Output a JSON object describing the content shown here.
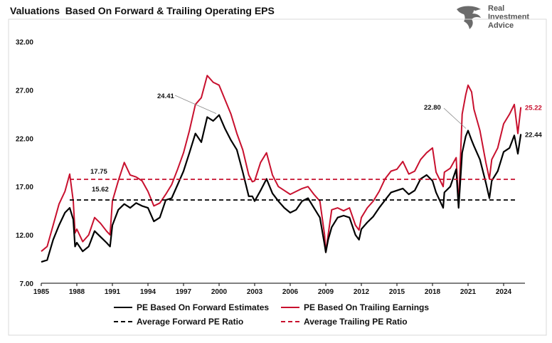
{
  "title": "Valuations  Based On Forward & Trailing Operating EPS",
  "logo": {
    "line1": "Real",
    "line2": "Investment",
    "line3": "Advice"
  },
  "legend": {
    "forward": "PE Based On Forward Estimates",
    "trailing": "PE Based On Trailing Earnings",
    "avg_forward": "Average Forward PE Ratio",
    "avg_trailing": "Average Trailing PE Ratio"
  },
  "colors": {
    "forward": "#000000",
    "trailing": "#c8102e",
    "avg_forward": "#000000",
    "avg_trailing": "#c8102e"
  },
  "chart_data": {
    "type": "line",
    "title": "Valuations  Based On Forward & Trailing Operating EPS",
    "xlabel": "",
    "ylabel": "",
    "xlim": [
      1985,
      2025.8
    ],
    "ylim": [
      7.0,
      33.0
    ],
    "y_ticks": [
      "7.00",
      "12.00",
      "17.00",
      "22.00",
      "27.00",
      "32.00"
    ],
    "x_ticks": [
      "1985",
      "1988",
      "1991",
      "1994",
      "1997",
      "2000",
      "2003",
      "2006",
      "2009",
      "2012",
      "2015",
      "2018",
      "2021",
      "2024"
    ],
    "grid": false,
    "legend_position": "bottom",
    "series": [
      {
        "name": "PE Based On Forward Estimates",
        "style": "solid",
        "x": [
          1985.0,
          1985.5,
          1986.0,
          1986.5,
          1987.0,
          1987.4,
          1987.7,
          1987.85,
          1988.0,
          1988.5,
          1989.0,
          1989.5,
          1990.0,
          1990.5,
          1990.8,
          1991.0,
          1991.5,
          1992.0,
          1992.5,
          1993.0,
          1993.5,
          1994.0,
          1994.5,
          1995.0,
          1995.5,
          1996.0,
          1996.5,
          1997.0,
          1997.5,
          1998.0,
          1998.5,
          1999.0,
          1999.5,
          2000.0,
          2000.5,
          2001.0,
          2001.5,
          2002.0,
          2002.5,
          2002.8,
          2003.0,
          2003.5,
          2004.0,
          2004.5,
          2005.0,
          2005.5,
          2006.0,
          2006.5,
          2007.0,
          2007.5,
          2008.0,
          2008.5,
          2008.9,
          2009.0,
          2009.2,
          2009.5,
          2010.0,
          2010.5,
          2011.0,
          2011.5,
          2011.8,
          2012.0,
          2012.5,
          2013.0,
          2013.5,
          2014.0,
          2014.5,
          2015.0,
          2015.5,
          2016.0,
          2016.5,
          2017.0,
          2017.5,
          2018.0,
          2018.3,
          2018.9,
          2019.0,
          2019.5,
          2020.0,
          2020.2,
          2020.5,
          2020.8,
          2021.0,
          2021.3,
          2021.5,
          2022.0,
          2022.5,
          2022.8,
          2023.0,
          2023.5,
          2024.0,
          2024.5,
          2024.9,
          2025.2,
          2025.45
        ],
        "y": [
          9.2,
          9.4,
          11.5,
          13.0,
          14.3,
          14.8,
          13.6,
          10.8,
          11.2,
          10.3,
          10.8,
          12.4,
          11.8,
          11.2,
          10.8,
          13.0,
          14.6,
          15.2,
          14.8,
          15.3,
          15.0,
          14.8,
          13.4,
          13.8,
          15.6,
          15.8,
          17.2,
          18.6,
          20.5,
          22.5,
          21.6,
          24.2,
          23.8,
          24.41,
          23.0,
          21.8,
          20.8,
          18.5,
          16.0,
          16.0,
          15.5,
          16.6,
          17.8,
          16.3,
          15.5,
          14.8,
          14.3,
          14.6,
          15.5,
          15.8,
          14.8,
          13.8,
          11.0,
          10.2,
          11.5,
          12.8,
          13.8,
          14.0,
          13.8,
          12.0,
          11.5,
          12.6,
          13.3,
          13.9,
          14.8,
          15.6,
          16.4,
          16.6,
          16.8,
          16.2,
          16.6,
          17.8,
          18.2,
          17.6,
          16.4,
          14.8,
          16.4,
          17.0,
          18.8,
          14.8,
          20.5,
          22.2,
          22.8,
          21.8,
          21.2,
          19.8,
          17.4,
          15.8,
          17.6,
          18.6,
          20.6,
          21.0,
          22.3,
          20.4,
          22.44
        ]
      },
      {
        "name": "PE Based On Trailing Earnings",
        "style": "solid",
        "x": [
          1985.0,
          1985.5,
          1986.0,
          1986.5,
          1987.0,
          1987.4,
          1987.7,
          1987.85,
          1988.0,
          1988.5,
          1989.0,
          1989.5,
          1990.0,
          1990.5,
          1990.8,
          1991.0,
          1991.5,
          1992.0,
          1992.5,
          1993.0,
          1993.5,
          1994.0,
          1994.5,
          1995.0,
          1995.5,
          1996.0,
          1996.5,
          1997.0,
          1997.5,
          1998.0,
          1998.5,
          1999.0,
          1999.5,
          2000.0,
          2000.5,
          2001.0,
          2001.5,
          2002.0,
          2002.5,
          2002.8,
          2003.0,
          2003.5,
          2004.0,
          2004.5,
          2005.0,
          2005.5,
          2006.0,
          2006.5,
          2007.0,
          2007.5,
          2008.0,
          2008.5,
          2008.9,
          2009.0,
          2009.2,
          2009.5,
          2010.0,
          2010.5,
          2011.0,
          2011.5,
          2011.8,
          2012.0,
          2012.5,
          2013.0,
          2013.5,
          2014.0,
          2014.5,
          2015.0,
          2015.5,
          2016.0,
          2016.5,
          2017.0,
          2017.5,
          2018.0,
          2018.3,
          2018.9,
          2019.0,
          2019.5,
          2020.0,
          2020.2,
          2020.5,
          2020.8,
          2021.0,
          2021.3,
          2021.5,
          2022.0,
          2022.5,
          2022.8,
          2023.0,
          2023.5,
          2024.0,
          2024.5,
          2024.9,
          2025.2,
          2025.45
        ],
        "y": [
          10.3,
          10.8,
          13.0,
          15.2,
          16.5,
          18.3,
          15.5,
          12.2,
          12.6,
          11.3,
          12.0,
          13.8,
          13.2,
          12.4,
          12.0,
          15.5,
          17.6,
          19.5,
          18.2,
          18.0,
          17.6,
          16.5,
          15.0,
          15.3,
          16.2,
          17.2,
          18.8,
          20.5,
          22.8,
          25.5,
          26.2,
          28.5,
          27.8,
          27.5,
          26.0,
          24.5,
          22.5,
          20.8,
          18.2,
          17.5,
          17.6,
          19.5,
          20.5,
          18.2,
          17.0,
          16.6,
          16.2,
          16.5,
          16.8,
          17.0,
          16.2,
          15.5,
          12.0,
          10.2,
          12.0,
          14.6,
          14.8,
          14.5,
          14.8,
          13.0,
          12.5,
          13.8,
          14.8,
          15.5,
          16.5,
          17.8,
          18.6,
          18.8,
          19.6,
          18.3,
          18.6,
          19.8,
          20.5,
          21.0,
          18.5,
          17.0,
          18.5,
          18.9,
          20.0,
          15.0,
          24.5,
          26.5,
          27.5,
          26.8,
          25.0,
          22.8,
          19.5,
          17.8,
          19.8,
          21.0,
          23.5,
          24.5,
          25.5,
          22.5,
          25.22
        ]
      },
      {
        "name": "Average Forward PE Ratio",
        "style": "dashed",
        "x": [
          1987.4,
          2025.0
        ],
        "y": [
          15.62,
          15.62
        ]
      },
      {
        "name": "Average Trailing PE Ratio",
        "style": "dashed",
        "x": [
          1987.4,
          2025.0
        ],
        "y": [
          17.75,
          17.75
        ]
      }
    ],
    "annotations": [
      {
        "text": "24.41",
        "series": "PE Based On Forward Estimates",
        "x": 2000.0,
        "y": 24.41
      },
      {
        "text": "22.80",
        "series": "PE Based On Forward Estimates",
        "x": 2021.0,
        "y": 22.8
      },
      {
        "text": "25.22",
        "series": "PE Based On Trailing Earnings",
        "x": 2025.45,
        "y": 25.22
      },
      {
        "text": "22.44",
        "series": "PE Based On Forward Estimates",
        "x": 2025.45,
        "y": 22.44
      },
      {
        "text": "17.75",
        "series": "Average Trailing PE Ratio",
        "x": 1987.4,
        "y": 17.75
      },
      {
        "text": "15.62",
        "series": "Average Forward PE Ratio",
        "x": 1987.4,
        "y": 15.62
      }
    ]
  }
}
